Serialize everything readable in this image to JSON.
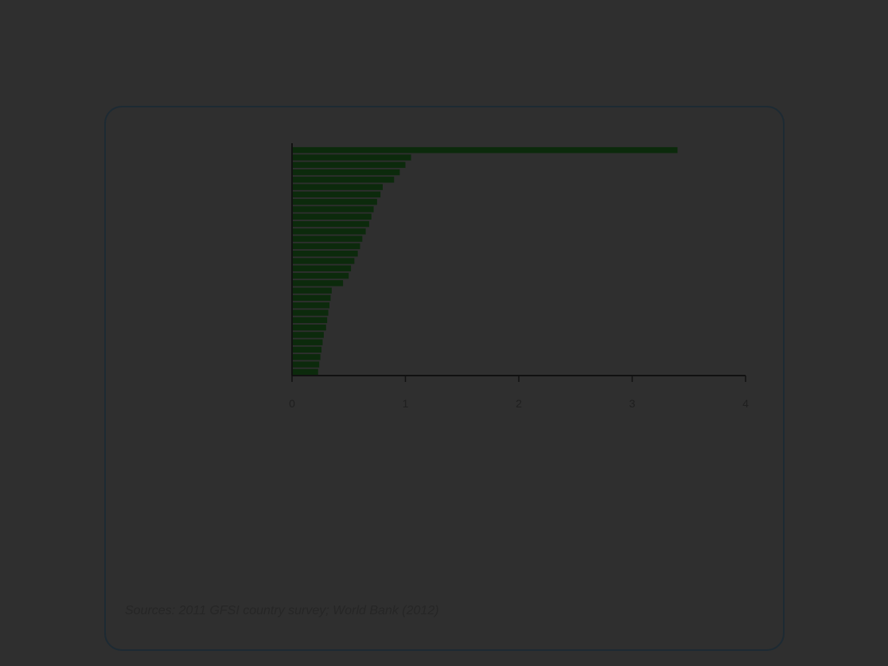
{
  "page": {
    "title": "",
    "notes": [
      "",
      ""
    ],
    "sources": "Sources: 2011 GFSI country survey; World Bank (2012)"
  },
  "colors": {
    "background": "#2f2f2f",
    "bar": "#0c2a0c",
    "axis": "#111111",
    "card_border": "#1d2a33"
  },
  "chart_data": {
    "type": "bar",
    "orientation": "horizontal",
    "categories": [
      "",
      "",
      "",
      "",
      "",
      "",
      "",
      "",
      "",
      "",
      "",
      "",
      "",
      "",
      "",
      "",
      "",
      "",
      "",
      "",
      "",
      "",
      "",
      "",
      "",
      "",
      "",
      "",
      "",
      "",
      ""
    ],
    "values": [
      3.4,
      1.05,
      1.0,
      0.95,
      0.9,
      0.8,
      0.78,
      0.75,
      0.72,
      0.7,
      0.68,
      0.65,
      0.62,
      0.6,
      0.58,
      0.55,
      0.52,
      0.5,
      0.45,
      0.35,
      0.34,
      0.33,
      0.32,
      0.31,
      0.3,
      0.28,
      0.27,
      0.26,
      0.25,
      0.24,
      0.23
    ],
    "value_labels": [
      "",
      "",
      "",
      "",
      "",
      "",
      "",
      "",
      "",
      "",
      "",
      "",
      "",
      "",
      "",
      "",
      "",
      "",
      "",
      "",
      "",
      "",
      "",
      "",
      "",
      "",
      "",
      "",
      "",
      "",
      ""
    ],
    "x_ticks": [
      "0",
      "1",
      "2",
      "3",
      "4"
    ],
    "xlim": [
      0,
      4
    ],
    "xlabel": "",
    "ylabel": "",
    "grid": false
  }
}
